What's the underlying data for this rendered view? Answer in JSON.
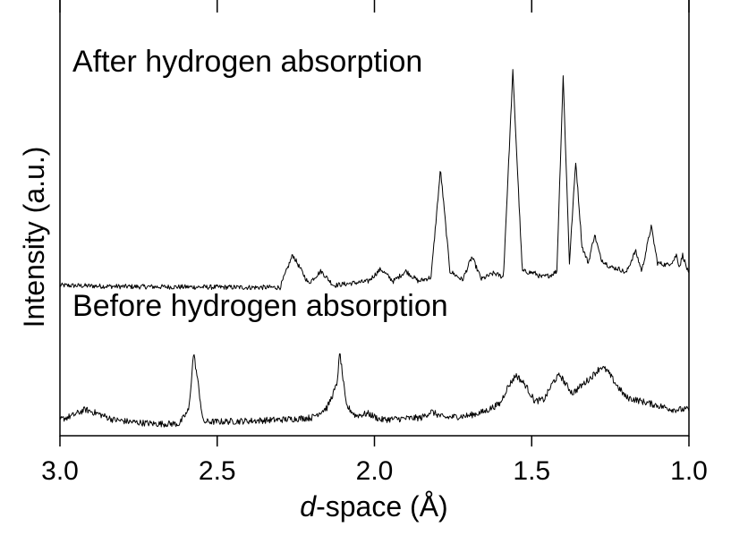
{
  "chart_data": {
    "type": "line",
    "title": "",
    "xlabel_italic": "d",
    "xlabel_rest": "-space (Å)",
    "ylabel": "Intensity (a.u.)",
    "x_axis": {
      "reversed": true,
      "xlim": [
        3.0,
        1.0
      ],
      "ticks": [
        3.0,
        2.5,
        2.0,
        1.5,
        1.0
      ],
      "tick_labels": [
        "3.0",
        "2.5",
        "2.0",
        "1.5",
        "1.0"
      ]
    },
    "y_axis": {
      "ticks_shown": false,
      "ylim": [
        0,
        100
      ]
    },
    "grid": false,
    "legend": "none",
    "annotations": [
      {
        "text": "After hydrogen absorption",
        "x": 2.96,
        "y": 89
      },
      {
        "text": "Before hydrogen absorption",
        "x": 2.96,
        "y": 29
      }
    ],
    "series": [
      {
        "name": "After hydrogen absorption",
        "baseline": 36,
        "noise": 0.6,
        "points": [
          [
            3.0,
            36.5
          ],
          [
            2.8,
            36.2
          ],
          [
            2.6,
            36.1
          ],
          [
            2.4,
            36.0
          ],
          [
            2.3,
            36.0
          ],
          [
            2.26,
            44
          ],
          [
            2.21,
            37
          ],
          [
            2.17,
            40
          ],
          [
            2.13,
            36.5
          ],
          [
            2.02,
            37.5
          ],
          [
            1.98,
            40.5
          ],
          [
            1.94,
            37.5
          ],
          [
            1.9,
            40
          ],
          [
            1.86,
            37.5
          ],
          [
            1.82,
            38.5
          ],
          [
            1.79,
            65
          ],
          [
            1.76,
            40
          ],
          [
            1.72,
            37.8
          ],
          [
            1.69,
            43.5
          ],
          [
            1.66,
            38
          ],
          [
            1.62,
            39.5
          ],
          [
            1.59,
            38.5
          ],
          [
            1.56,
            89
          ],
          [
            1.53,
            40
          ],
          [
            1.49,
            39.5
          ],
          [
            1.47,
            38.5
          ],
          [
            1.44,
            39
          ],
          [
            1.42,
            40
          ],
          [
            1.4,
            88
          ],
          [
            1.38,
            42
          ],
          [
            1.36,
            67
          ],
          [
            1.34,
            46
          ],
          [
            1.32,
            42
          ],
          [
            1.3,
            49
          ],
          [
            1.28,
            43
          ],
          [
            1.25,
            41
          ],
          [
            1.22,
            40.5
          ],
          [
            1.2,
            39.5
          ],
          [
            1.17,
            45
          ],
          [
            1.15,
            40
          ],
          [
            1.12,
            51
          ],
          [
            1.1,
            42
          ],
          [
            1.07,
            41.5
          ],
          [
            1.05,
            42.5
          ],
          [
            1.04,
            44
          ],
          [
            1.03,
            41
          ],
          [
            1.02,
            44
          ],
          [
            1.0,
            39
          ]
        ]
      },
      {
        "name": "Before hydrogen absorption",
        "baseline": 3,
        "noise": 0.8,
        "points": [
          [
            3.0,
            3.5
          ],
          [
            2.96,
            4.5
          ],
          [
            2.92,
            6
          ],
          [
            2.88,
            5
          ],
          [
            2.83,
            3.5
          ],
          [
            2.78,
            3
          ],
          [
            2.7,
            2.5
          ],
          [
            2.62,
            2.5
          ],
          [
            2.59,
            6
          ],
          [
            2.575,
            20
          ],
          [
            2.56,
            12
          ],
          [
            2.545,
            3
          ],
          [
            2.5,
            3
          ],
          [
            2.4,
            3.2
          ],
          [
            2.3,
            3.5
          ],
          [
            2.2,
            4
          ],
          [
            2.15,
            6.5
          ],
          [
            2.12,
            12
          ],
          [
            2.11,
            20
          ],
          [
            2.09,
            7
          ],
          [
            2.06,
            4.5
          ],
          [
            2.02,
            5
          ],
          [
            1.98,
            3.5
          ],
          [
            1.9,
            3.8
          ],
          [
            1.85,
            4
          ],
          [
            1.82,
            5.5
          ],
          [
            1.78,
            4
          ],
          [
            1.7,
            4.5
          ],
          [
            1.65,
            5.5
          ],
          [
            1.6,
            7.5
          ],
          [
            1.58,
            11
          ],
          [
            1.55,
            14.5
          ],
          [
            1.52,
            12
          ],
          [
            1.49,
            8
          ],
          [
            1.46,
            8.5
          ],
          [
            1.43,
            13
          ],
          [
            1.41,
            14.5
          ],
          [
            1.39,
            12
          ],
          [
            1.37,
            10
          ],
          [
            1.34,
            12
          ],
          [
            1.31,
            14
          ],
          [
            1.28,
            16.5
          ],
          [
            1.26,
            15.5
          ],
          [
            1.23,
            12
          ],
          [
            1.2,
            9
          ],
          [
            1.15,
            8
          ],
          [
            1.1,
            7
          ],
          [
            1.05,
            6
          ],
          [
            1.0,
            6
          ]
        ]
      }
    ]
  }
}
